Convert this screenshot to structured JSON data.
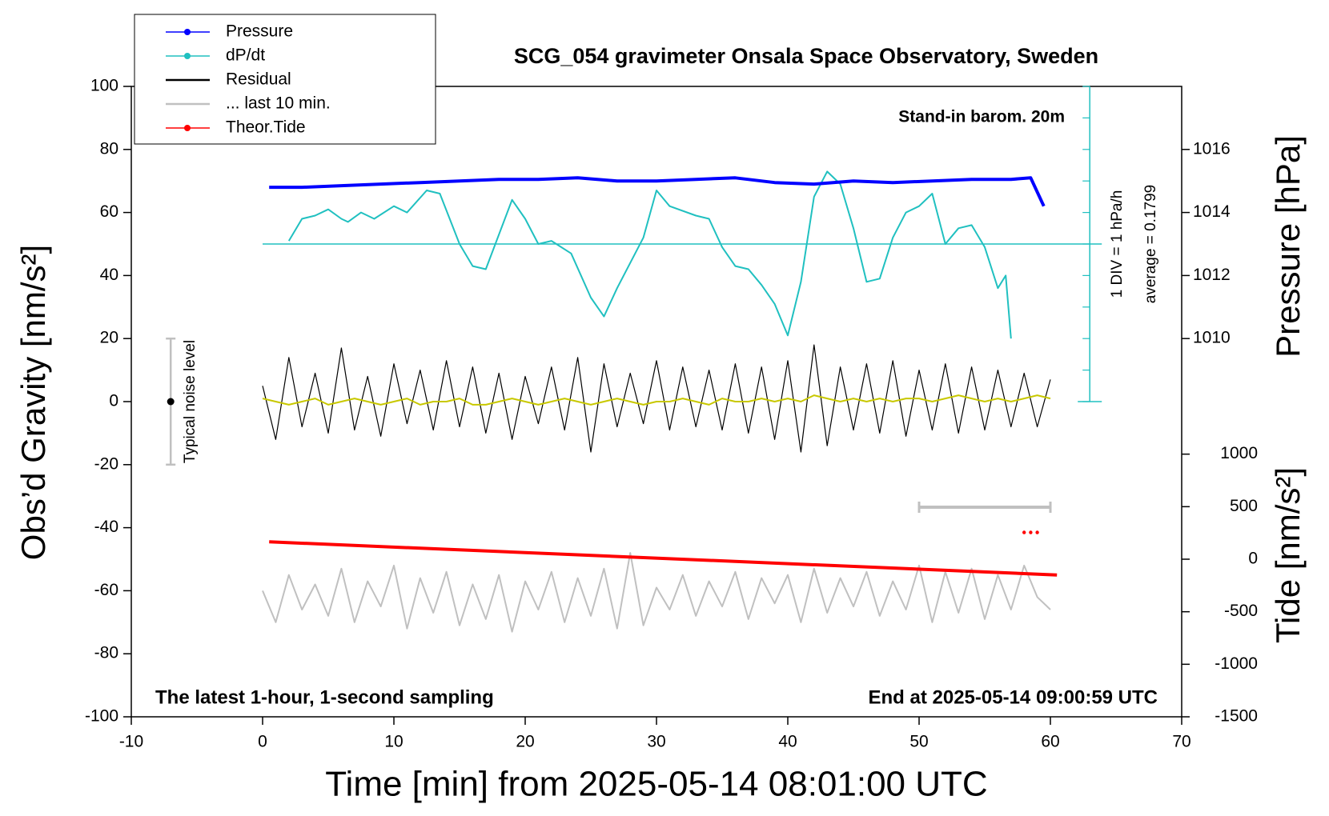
{
  "chart_data": {
    "type": "line",
    "title": "SCG_054 gravimeter Onsala Space Observatory, Sweden",
    "x_label": "Time [min] from 2025-05-14 08:01:00 UTC",
    "y_label": "Obs’d Gravity [nm/s²]",
    "y2_label": "Pressure [hPa]",
    "y3_label": "Tide [nm/s²]",
    "annotations": [
      "Stand-in barom. 20m",
      "1 DIV = 1 hPa/h",
      "average = 0.1799",
      "The latest 1-hour, 1-second sampling",
      "End at 2025-05-14 09:00:59 UTC"
    ],
    "xlim": [
      -10,
      70
    ],
    "xticks": [
      -10,
      0,
      10,
      20,
      30,
      40,
      50,
      60,
      70
    ],
    "ylim": [
      -100,
      100
    ],
    "yticks": [
      -100,
      -80,
      -60,
      -40,
      -20,
      0,
      20,
      40,
      60,
      80,
      100
    ],
    "y2lim": [
      998,
      1018
    ],
    "y2ticks": [
      1010,
      1012,
      1014,
      1016
    ],
    "y3lim": [
      -1500,
      4500
    ],
    "y3ticks": [
      -1500,
      -1000,
      -500,
      0,
      500,
      1000
    ],
    "dpdt_axis": {
      "x": 63,
      "ticks": [
        0,
        10,
        20,
        30,
        40,
        50,
        60,
        70,
        80,
        90,
        100
      ],
      "baseline": 50,
      "color": "#20c0c0"
    },
    "noise_bar": {
      "x": -7,
      "low": -20,
      "high": 20,
      "center": 0,
      "label": "Typical noise level"
    },
    "scale_bar": {
      "x": [
        50,
        60
      ],
      "y": -33.5
    },
    "x": [
      0,
      1,
      2,
      3,
      4,
      5,
      6,
      7,
      8,
      9,
      10,
      11,
      12,
      13,
      14,
      15,
      16,
      17,
      18,
      19,
      20,
      21,
      22,
      23,
      24,
      25,
      26,
      27,
      28,
      29,
      30,
      31,
      32,
      33,
      34,
      35,
      36,
      37,
      38,
      39,
      40,
      41,
      42,
      43,
      44,
      45,
      46,
      47,
      48,
      49,
      50,
      51,
      52,
      53,
      54,
      55,
      56,
      57,
      58,
      59,
      60
    ],
    "series": [
      {
        "name": "Pressure",
        "color": "#0000ff",
        "marker": true,
        "axis": "y2",
        "width": 4,
        "x": [
          0.5,
          3,
          6,
          9,
          12,
          15,
          18,
          21,
          24,
          27,
          30,
          33,
          36,
          39,
          42,
          45,
          48,
          51,
          54,
          57,
          58.5,
          59.5
        ],
        "values": [
          1014.8,
          1014.8,
          1014.85,
          1014.9,
          1014.95,
          1015.0,
          1015.05,
          1015.05,
          1015.1,
          1015.0,
          1015.0,
          1015.05,
          1015.1,
          1014.95,
          1014.9,
          1015.0,
          1014.95,
          1015.0,
          1015.05,
          1015.05,
          1015.1,
          1014.2
        ]
      },
      {
        "name": "dP/dt",
        "color": "#20c0c0",
        "marker": true,
        "width": 2,
        "x": [
          2,
          3,
          4,
          5,
          6,
          6.5,
          7.5,
          8.5,
          10,
          11,
          12.5,
          13.5,
          15,
          16,
          17,
          19,
          20,
          21,
          22,
          23.5,
          25,
          26,
          27,
          29,
          30,
          31,
          33,
          34,
          35,
          36,
          37,
          38,
          39,
          40,
          41,
          42,
          43,
          44,
          45,
          46,
          47,
          48,
          49,
          50,
          51,
          52,
          53,
          54,
          55,
          56,
          56.6,
          57
        ],
        "values": [
          51,
          58,
          59,
          61,
          58,
          57,
          60,
          58,
          62,
          60,
          67,
          66,
          50,
          43,
          42,
          64,
          58,
          50,
          51,
          47,
          33,
          27,
          36,
          52,
          67,
          62,
          59,
          58,
          49,
          43,
          42,
          37,
          31,
          21,
          38,
          65,
          73,
          69,
          55,
          38,
          39,
          52,
          60,
          62,
          66,
          50,
          55,
          56,
          49,
          36,
          40,
          20
        ]
      },
      {
        "name": "Residual",
        "color": "#000000",
        "width": 1.2,
        "values": [
          5,
          -12,
          14,
          -8,
          9,
          -10,
          17,
          -9,
          8,
          -11,
          12,
          -7,
          10,
          -9,
          13,
          -8,
          11,
          -10,
          9,
          -12,
          8,
          -7,
          11,
          -9,
          14,
          -16,
          12,
          -8,
          9,
          -7,
          13,
          -9,
          11,
          -8,
          10,
          -9,
          12,
          -10,
          11,
          -12,
          13,
          -16,
          18,
          -14,
          11,
          -9,
          12,
          -10,
          13,
          -11,
          10,
          -9,
          12,
          -10,
          11,
          -9,
          10,
          -8,
          9,
          -8,
          7
        ]
      },
      {
        "color": "#c8c800",
        "width": 2,
        "values": [
          1,
          0,
          -1,
          0,
          1,
          -1,
          0,
          1,
          0,
          -1,
          0,
          1,
          -1,
          0,
          0,
          1,
          -1,
          -1,
          0,
          1,
          0,
          -1,
          0,
          1,
          0,
          -1,
          0,
          1,
          0,
          -1,
          0,
          0,
          1,
          0,
          -1,
          1,
          0,
          0,
          1,
          0,
          1,
          0,
          2,
          1,
          0,
          1,
          0,
          1,
          0,
          1,
          1,
          0,
          1,
          2,
          1,
          0,
          1,
          0,
          1,
          2,
          1
        ]
      },
      {
        "name": "... last 10 min.",
        "color": "#c0c0c0",
        "width": 2,
        "values": [
          -60,
          -70,
          -55,
          -66,
          -58,
          -68,
          -53,
          -70,
          -57,
          -65,
          -52,
          -72,
          -56,
          -67,
          -54,
          -71,
          -58,
          -69,
          -55,
          -73,
          -57,
          -66,
          -54,
          -70,
          -56,
          -68,
          -53,
          -72,
          -48,
          -71,
          -59,
          -66,
          -55,
          -68,
          -57,
          -65,
          -54,
          -69,
          -56,
          -64,
          -55,
          -70,
          -53,
          -67,
          -56,
          -65,
          -54,
          -68,
          -57,
          -66,
          -52,
          -70,
          -54,
          -67,
          -53,
          -69,
          -55,
          -66,
          -52,
          -62,
          -66
        ]
      },
      {
        "name": "Theor.Tide",
        "color": "#ff0000",
        "marker": true,
        "axis": "y3",
        "width": 4,
        "x": [
          0.5,
          60.5
        ],
        "values": [
          165,
          -150
        ]
      },
      {
        "color": "#ff0000",
        "axis": "y3",
        "dots": true,
        "x": [
          58,
          58.5,
          59
        ],
        "values": [
          255,
          255,
          255
        ]
      }
    ]
  }
}
